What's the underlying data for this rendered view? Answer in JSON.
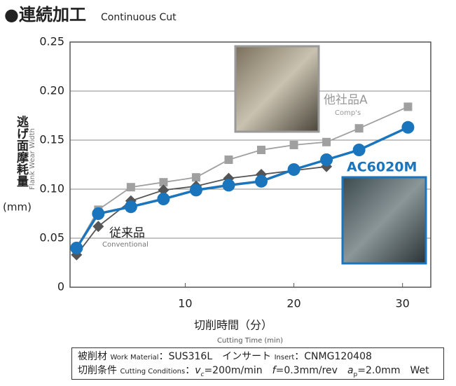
{
  "chart_data": {
    "type": "line",
    "title": "●連続加工",
    "subtitle": "Continuous Cut",
    "y_label": "逃げ面摩耗量",
    "y_label_en": "Flank Wear Width",
    "y_unit": "(mm)",
    "x_label": "切削時間（分）",
    "x_label_en": "Cutting Time (min)",
    "xlim": [
      -0.6,
      32.6
    ],
    "xticks": [
      10,
      20,
      30
    ],
    "ylim": [
      0,
      0.25
    ],
    "yticks": [
      0,
      0.05,
      {
        "value": 0.1,
        "label": "0.10"
      },
      0.15,
      {
        "value": 0.2,
        "label": "0.20"
      },
      0.25
    ],
    "grid": true,
    "series": [
      {
        "name": "他社品A",
        "name_en": "Comp's",
        "color": "#a0a0a0",
        "marker": "square",
        "x": [
          0,
          2,
          5,
          8,
          11,
          14,
          17,
          20,
          23,
          26,
          30.5
        ],
        "values": [
          0.04,
          0.079,
          0.102,
          0.107,
          0.112,
          0.13,
          0.14,
          0.145,
          0.148,
          0.162,
          0.184
        ]
      },
      {
        "name": "従来品",
        "name_en": "Conventional",
        "color": "#555555",
        "marker": "diamond",
        "x": [
          0,
          2,
          5,
          8,
          11,
          14,
          17,
          20,
          23
        ],
        "values": [
          0.033,
          0.062,
          0.088,
          0.099,
          0.103,
          0.111,
          0.115,
          0.119,
          0.123
        ]
      },
      {
        "name": "AC6020M",
        "color": "#1a75bc",
        "marker": "circle",
        "x": [
          0,
          2,
          5,
          8,
          11,
          14,
          17,
          20,
          23,
          26,
          30.5
        ],
        "values": [
          0.04,
          0.075,
          0.082,
          0.09,
          0.099,
          0.104,
          0.108,
          0.12,
          0.13,
          0.14,
          0.163
        ]
      }
    ]
  },
  "conditions": {
    "line1": [
      "被削材",
      "Work Material",
      "：SUS316L　インサート",
      "Insert",
      "：CNMG120408"
    ],
    "line2": [
      "切削条件",
      "Cutting Conditions",
      "：",
      "v",
      "c",
      "=200m/min　",
      "f",
      "=0.3mm/rev　",
      "a",
      "p",
      "=2.0mm　Wet"
    ]
  }
}
